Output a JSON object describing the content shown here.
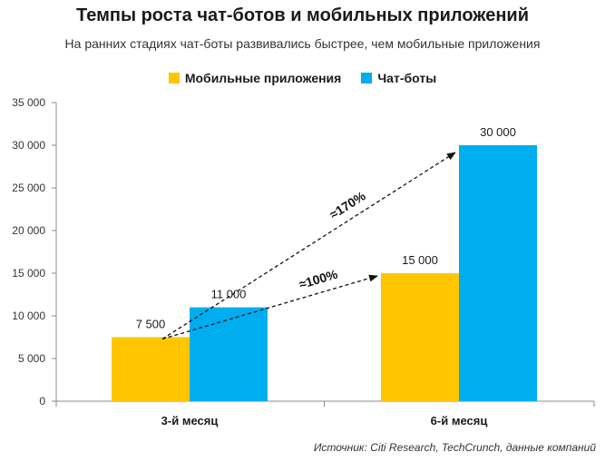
{
  "colors": {
    "mobile": "#FFC600",
    "bots": "#00AEEF",
    "axis": "#888888",
    "text": "#1a1a1a"
  },
  "chart_data": {
    "type": "bar",
    "title": "Темпы роста чат-ботов и мобильных приложений",
    "subtitle": "На ранних стадиях чат-боты развивались быстрее, чем мобильные приложения",
    "categories": [
      "3-й месяц",
      "6-й месяц"
    ],
    "series": [
      {
        "name": "Мобильные приложения",
        "values": [
          7500,
          15000
        ],
        "labels": [
          "7 500",
          "15 000"
        ]
      },
      {
        "name": "Чат-боты",
        "values": [
          11000,
          30000
        ],
        "labels": [
          "11 000",
          "30 000"
        ]
      }
    ],
    "ylim": [
      0,
      35000
    ],
    "yticks": [
      {
        "value": 0,
        "label": "0"
      },
      {
        "value": 5000,
        "label": "5 000"
      },
      {
        "value": 10000,
        "label": "10 000"
      },
      {
        "value": 15000,
        "label": "15 000"
      },
      {
        "value": 20000,
        "label": "20 000"
      },
      {
        "value": 25000,
        "label": "25 000"
      },
      {
        "value": 30000,
        "label": "30 000"
      },
      {
        "value": 35000,
        "label": "35 000"
      }
    ],
    "legend": "top",
    "grid": false,
    "annotations": [
      {
        "text": "≈170%",
        "from": {
          "category": 0,
          "value": 7500
        },
        "to": {
          "category": 1,
          "value": 30000
        }
      },
      {
        "text": "≈100%",
        "from": {
          "category": 0,
          "value": 7500
        },
        "to": {
          "category": 1,
          "value": 15000
        }
      }
    ]
  },
  "source": "Источник: Citi Research, TechCrunch, данные компаний"
}
